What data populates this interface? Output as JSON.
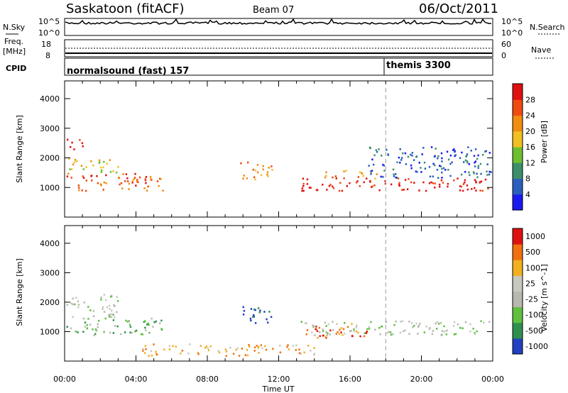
{
  "header": {
    "station": "Saskatoon (fitACF)",
    "beam": "Beam 07",
    "date": "06/Oct/2011"
  },
  "panels": {
    "nsky": {
      "label": "N.Sky",
      "tick_top": "10^5",
      "tick_bottom": "10^0"
    },
    "nsearch": {
      "label": "N.Search",
      "tick_top": "10^5",
      "tick_bottom": "10^0"
    },
    "freq": {
      "label_line1": "Freq.",
      "label_line2": "[MHz]",
      "tick_top": "18",
      "tick_bottom": "8"
    },
    "nave": {
      "label": "Nave",
      "tick_top": "60",
      "tick_bottom": "0"
    },
    "cpid": {
      "label": "CPID",
      "mode1": "normalsound (fast) 157",
      "mode2": "themis 3300"
    }
  },
  "chart_data": [
    {
      "type": "heatmap",
      "name": "power",
      "ylabel": "Slant Range [km]",
      "xlabel": "Time UT",
      "x_ticks": [
        "00:00",
        "04:00",
        "08:00",
        "12:00",
        "16:00",
        "20:00",
        "00:00"
      ],
      "y_ticks": [
        "1000",
        "2000",
        "3000",
        "4000"
      ],
      "ylim": [
        0,
        4600
      ],
      "xlim_hours": [
        0,
        24
      ],
      "colorbar": {
        "label": "Power [dB]",
        "ticks": [
          "4",
          "8",
          "12",
          "16",
          "20",
          "24",
          "28"
        ],
        "colors": [
          "#1a1af0",
          "#2a5fbf",
          "#3c8f6a",
          "#6dbf2f",
          "#f0c020",
          "#f08c10",
          "#f04a10",
          "#e01010"
        ]
      },
      "mode_change_hour": 18.0,
      "regions": [
        {
          "t0": 0.1,
          "t1": 5.5,
          "r0": 900,
          "r1": 1500,
          "level": 6
        },
        {
          "t0": 0.1,
          "t1": 1.0,
          "r0": 2300,
          "r1": 2700,
          "level": 7
        },
        {
          "t0": 0.1,
          "t1": 3.0,
          "r0": 1500,
          "r1": 2000,
          "level": 4
        },
        {
          "t0": 9.8,
          "t1": 11.6,
          "r0": 1300,
          "r1": 1900,
          "level": 5
        },
        {
          "t0": 13.2,
          "t1": 23.9,
          "r0": 900,
          "r1": 1350,
          "level": 7
        },
        {
          "t0": 14.5,
          "t1": 17.5,
          "r0": 1300,
          "r1": 1600,
          "level": 5
        },
        {
          "t0": 17.0,
          "t1": 23.9,
          "r0": 1350,
          "r1": 2400,
          "level": 1
        }
      ]
    },
    {
      "type": "heatmap",
      "name": "velocity",
      "ylabel": "Slant Range [km]",
      "xlabel": "Time UT",
      "x_ticks": [
        "00:00",
        "04:00",
        "08:00",
        "12:00",
        "16:00",
        "20:00",
        "00:00"
      ],
      "y_ticks": [
        "1000",
        "2000",
        "3000",
        "4000"
      ],
      "ylim": [
        0,
        4600
      ],
      "xlim_hours": [
        0,
        24
      ],
      "colorbar": {
        "label": "Velocity [m s^-1]",
        "ticks": [
          "1000",
          "500",
          "100",
          "25",
          "-25",
          "-100",
          "-500",
          "-1000"
        ],
        "colors": [
          "#2040c0",
          "#2f8f4f",
          "#60c040",
          "#b8b8b0",
          "#c8c8c0",
          "#f0b020",
          "#f07010",
          "#e01010"
        ]
      },
      "mode_change_hour": 18.0,
      "regions": [
        {
          "t0": 0.1,
          "t1": 5.5,
          "r0": 900,
          "r1": 1500,
          "level": 2
        },
        {
          "t0": 0.1,
          "t1": 3.0,
          "r0": 1500,
          "r1": 2300,
          "level": 3
        },
        {
          "t0": 9.8,
          "t1": 11.6,
          "r0": 1300,
          "r1": 1900,
          "level": 0
        },
        {
          "t0": 13.0,
          "t1": 23.9,
          "r0": 900,
          "r1": 1400,
          "level": 3
        },
        {
          "t0": 13.5,
          "t1": 17.0,
          "r0": 800,
          "r1": 1300,
          "level": 6
        },
        {
          "t0": 4.0,
          "t1": 14.0,
          "r0": 200,
          "r1": 600,
          "level": 5
        }
      ]
    }
  ]
}
